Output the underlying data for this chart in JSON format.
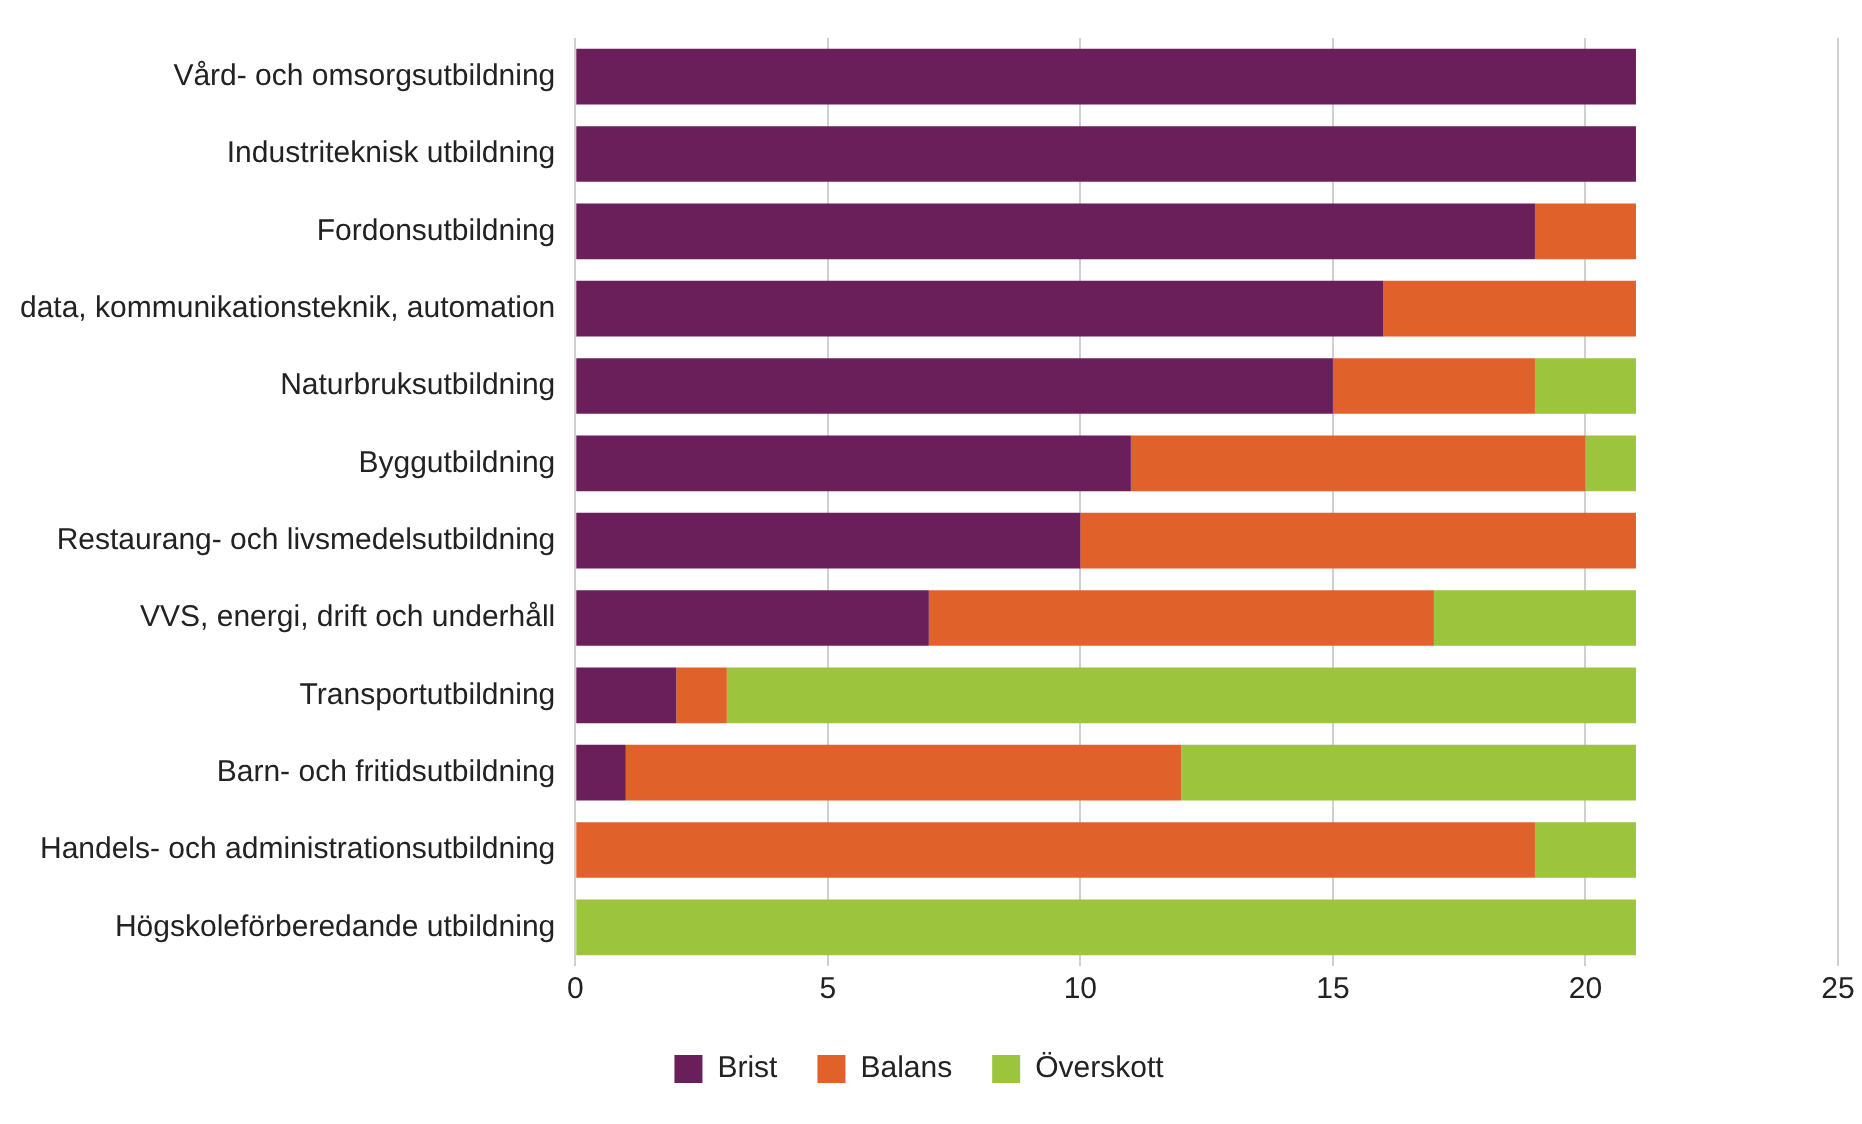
{
  "chart_data": {
    "type": "bar",
    "orientation": "horizontal",
    "stacked": true,
    "categories": [
      "Vård- och omsorgsutbildning",
      "Industriteknisk utbildning",
      "Fordonsutbildning",
      "data, kommunikationsteknik, automation",
      "Naturbruksutbildning",
      "Byggutbildning",
      "Restaurang- och livsmedelsutbildning",
      "VVS, energi, drift och underhåll",
      "Transportutbildning",
      "Barn- och fritidsutbildning",
      "Handels- och administrationsutbildning",
      "Högskoleförberedande utbildning"
    ],
    "series": [
      {
        "name": "Brist",
        "color": "#6b1f5a",
        "values": [
          21,
          21,
          19,
          16,
          15,
          11,
          10,
          7,
          2,
          1,
          0,
          0
        ]
      },
      {
        "name": "Balans",
        "color": "#e0622a",
        "values": [
          0,
          0,
          2,
          5,
          4,
          9,
          11,
          10,
          1,
          11,
          19,
          0
        ]
      },
      {
        "name": "Överskott",
        "color": "#9cc43c",
        "values": [
          0,
          0,
          0,
          0,
          2,
          1,
          0,
          4,
          18,
          9,
          2,
          21
        ]
      }
    ],
    "xlim": [
      0,
      25
    ],
    "xticks": [
      0,
      5,
      10,
      15,
      20,
      25
    ],
    "grid": "x",
    "legend": "bottom"
  }
}
